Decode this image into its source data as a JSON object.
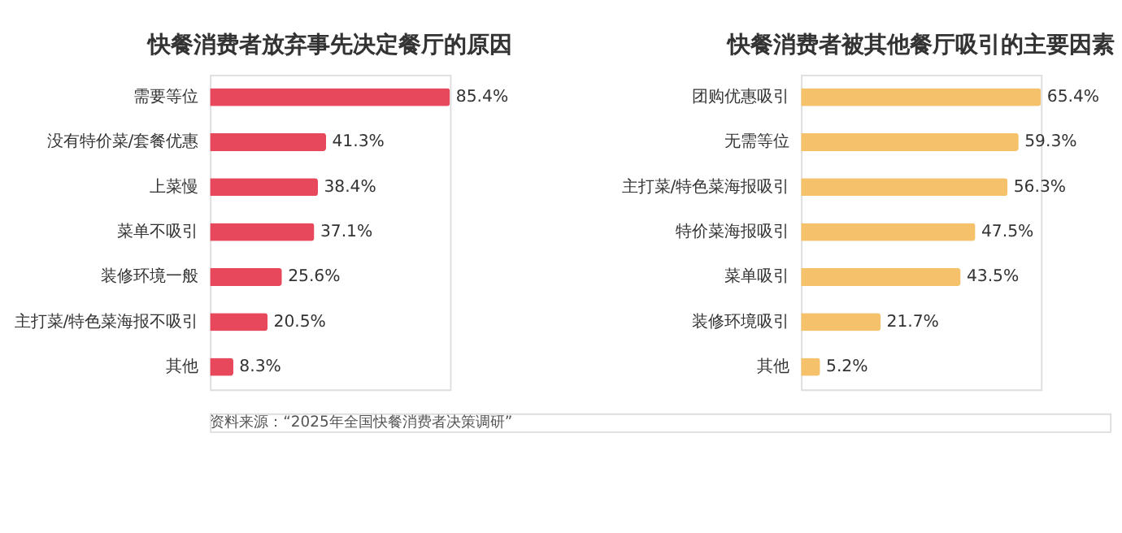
{
  "chart_data": [
    {
      "type": "bar",
      "orientation": "horizontal",
      "title": "快餐消费者放弃事先决定餐厅的原因",
      "categories": [
        "需要等位",
        "没有特价菜/套餐优惠",
        "上菜慢",
        "菜单不吸引",
        "装修环境一般",
        "主打菜/特色菜海报不吸引",
        "其他"
      ],
      "values": [
        85.4,
        41.3,
        38.4,
        37.1,
        25.6,
        20.5,
        8.3
      ],
      "value_labels": [
        "85.4%",
        "41.3%",
        "38.4%",
        "37.1%",
        "25.6%",
        "20.5%",
        "8.3%"
      ],
      "color": "#e8485c",
      "xlim": [
        0,
        85.4
      ],
      "annotations": [
        "资料来源：“2025年全国快餐消费者决策调研”"
      ]
    },
    {
      "type": "bar",
      "orientation": "horizontal",
      "title": "快餐消费者被其他餐厅吸引的主要因素",
      "categories": [
        "团购优惠吸引",
        "无需等位",
        "主打菜/特色菜海报吸引",
        "特价菜海报吸引",
        "菜单吸引",
        "装修环境吸引",
        "其他"
      ],
      "values": [
        65.4,
        59.3,
        56.3,
        47.5,
        43.5,
        21.7,
        5.2
      ],
      "value_labels": [
        "65.4%",
        "59.3%",
        "56.3%",
        "47.5%",
        "43.5%",
        "21.7%",
        "5.2%"
      ],
      "color": "#f5c26b",
      "xlim": [
        0,
        65.4
      ]
    }
  ]
}
